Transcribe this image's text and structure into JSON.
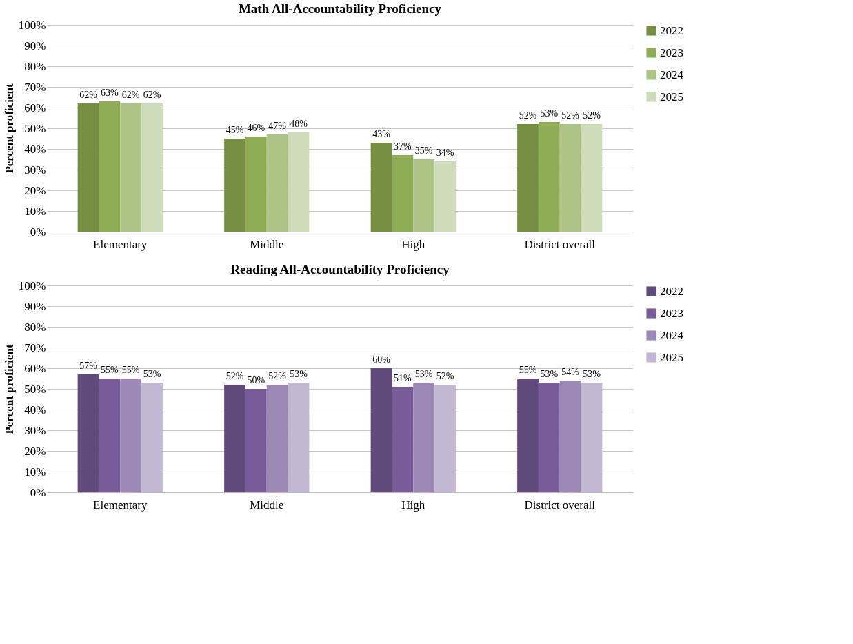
{
  "chart_data": [
    {
      "type": "bar",
      "title": "Math All-Accountability Proficiency",
      "ylabel": "Percent proficient",
      "categories": [
        "Elementary",
        "Middle",
        "High",
        "District overall"
      ],
      "series": [
        {
          "name": "2022",
          "color": "#778f42",
          "values": [
            62,
            45,
            43,
            52
          ]
        },
        {
          "name": "2023",
          "color": "#8fad55",
          "values": [
            63,
            46,
            37,
            53
          ]
        },
        {
          "name": "2024",
          "color": "#aec486",
          "values": [
            62,
            47,
            35,
            52
          ]
        },
        {
          "name": "2025",
          "color": "#cfdcb9",
          "values": [
            62,
            48,
            34,
            52
          ]
        }
      ],
      "ylim": [
        0,
        100
      ],
      "yticks": [
        {
          "value": 0,
          "label": "0%"
        },
        {
          "value": 10,
          "label": "10%"
        },
        {
          "value": 20,
          "label": "20%"
        },
        {
          "value": 30,
          "label": "30%"
        },
        {
          "value": 40,
          "label": "40%"
        },
        {
          "value": 50,
          "label": "50%"
        },
        {
          "value": 60,
          "label": "60%"
        },
        {
          "value": 70,
          "label": "70%"
        },
        {
          "value": 80,
          "label": "80%"
        },
        {
          "value": 90,
          "label": "90%"
        },
        {
          "value": 100,
          "label": "100%"
        }
      ],
      "value_labels": [
        [
          "62%",
          "45%",
          "43%",
          "52%"
        ],
        [
          "63%",
          "46%",
          "37%",
          "53%"
        ],
        [
          "62%",
          "47%",
          "35%",
          "52%"
        ],
        [
          "62%",
          "48%",
          "34%",
          "52%"
        ]
      ],
      "grid": "y",
      "legend": "right"
    },
    {
      "type": "bar",
      "title": "Reading All-Accountability Proficiency",
      "ylabel": "Percent proficient",
      "categories": [
        "Elementary",
        "Middle",
        "High",
        "District overall"
      ],
      "series": [
        {
          "name": "2022",
          "color": "#604a7b",
          "values": [
            57,
            52,
            60,
            55
          ]
        },
        {
          "name": "2023",
          "color": "#775c99",
          "values": [
            55,
            50,
            51,
            53
          ]
        },
        {
          "name": "2024",
          "color": "#9b88b4",
          "values": [
            55,
            52,
            53,
            54
          ]
        },
        {
          "name": "2025",
          "color": "#c2b7d2",
          "values": [
            53,
            53,
            52,
            53
          ]
        }
      ],
      "ylim": [
        0,
        100
      ],
      "yticks": [
        {
          "value": 0,
          "label": "0%"
        },
        {
          "value": 10,
          "label": "10%"
        },
        {
          "value": 20,
          "label": "20%"
        },
        {
          "value": 30,
          "label": "30%"
        },
        {
          "value": 40,
          "label": "40%"
        },
        {
          "value": 50,
          "label": "50%"
        },
        {
          "value": 60,
          "label": "60%"
        },
        {
          "value": 70,
          "label": "70%"
        },
        {
          "value": 80,
          "label": "80%"
        },
        {
          "value": 90,
          "label": "90%"
        },
        {
          "value": 100,
          "label": "100%"
        }
      ],
      "value_labels": [
        [
          "57%",
          "52%",
          "60%",
          "55%"
        ],
        [
          "55%",
          "50%",
          "51%",
          "53%"
        ],
        [
          "55%",
          "52%",
          "53%",
          "54%"
        ],
        [
          "53%",
          "53%",
          "52%",
          "53%"
        ]
      ],
      "grid": "y",
      "legend": "right"
    }
  ]
}
